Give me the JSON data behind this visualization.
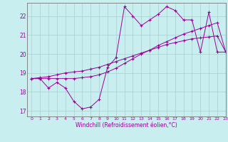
{
  "xlabel": "Windchill (Refroidissement éolien,°C)",
  "bg_color": "#c8eef0",
  "line_color": "#990099",
  "grid_color": "#aacccc",
  "xlim": [
    -0.5,
    23
  ],
  "ylim": [
    16.7,
    22.7
  ],
  "yticks": [
    17,
    18,
    19,
    20,
    21,
    22
  ],
  "xticks": [
    0,
    1,
    2,
    3,
    4,
    5,
    6,
    7,
    8,
    9,
    10,
    11,
    12,
    13,
    14,
    15,
    16,
    17,
    18,
    19,
    20,
    21,
    22,
    23
  ],
  "hours": [
    0,
    1,
    2,
    3,
    4,
    5,
    6,
    7,
    8,
    9,
    10,
    11,
    12,
    13,
    14,
    15,
    16,
    17,
    18,
    19,
    20,
    21,
    22,
    23
  ],
  "windchill": [
    18.7,
    18.7,
    18.2,
    18.5,
    18.2,
    17.5,
    17.1,
    17.2,
    17.6,
    19.3,
    19.8,
    22.5,
    22.0,
    21.5,
    21.8,
    22.1,
    22.5,
    22.3,
    21.8,
    21.8,
    20.1,
    22.2,
    20.1,
    20.1
  ],
  "line1": [
    18.7,
    18.7,
    18.7,
    18.7,
    18.7,
    18.7,
    18.75,
    18.8,
    18.9,
    19.05,
    19.25,
    19.5,
    19.75,
    20.0,
    20.2,
    20.45,
    20.65,
    20.85,
    21.05,
    21.2,
    21.35,
    21.5,
    21.65,
    20.1
  ],
  "line2": [
    18.7,
    18.75,
    18.8,
    18.9,
    19.0,
    19.05,
    19.1,
    19.2,
    19.3,
    19.45,
    19.6,
    19.75,
    19.9,
    20.05,
    20.2,
    20.35,
    20.5,
    20.6,
    20.7,
    20.8,
    20.85,
    20.9,
    20.95,
    20.1
  ]
}
